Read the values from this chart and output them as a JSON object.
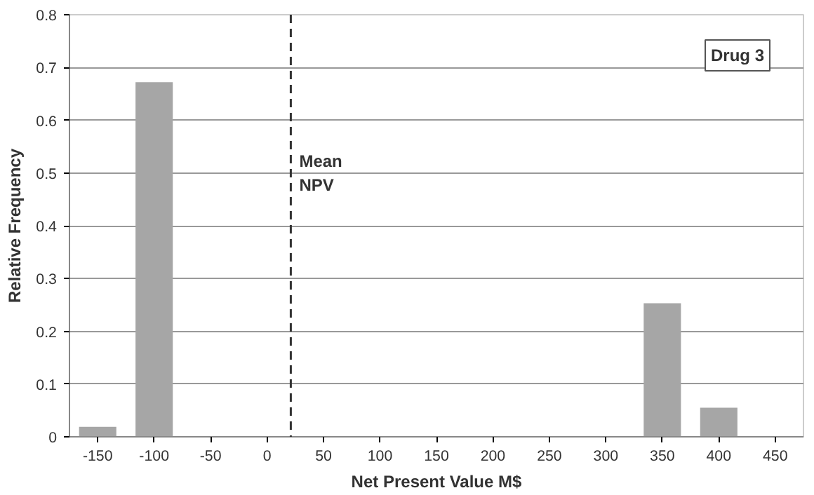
{
  "chart_data": {
    "type": "bar",
    "xlabel": "Net Present Value M$",
    "ylabel": "Relative Frequency",
    "x": [
      -150,
      -100,
      350,
      400
    ],
    "values": [
      0.019,
      0.672,
      0.253,
      0.055
    ],
    "color": "#a6a6a6",
    "xlim": [
      -175,
      475
    ],
    "xticks": [
      -150,
      -100,
      -50,
      0,
      50,
      100,
      150,
      200,
      250,
      300,
      350,
      400,
      450
    ],
    "ylim": [
      0,
      0.8
    ],
    "yticks": [
      0,
      0.1,
      0.2,
      0.3,
      0.4,
      0.5,
      0.6,
      0.7,
      0.8
    ],
    "grid": "y",
    "ref_lines": [
      {
        "axis": "x",
        "value": 21,
        "label": "Mean\nNPV",
        "line_style": "dashed",
        "color": "#333333"
      }
    ],
    "annotations": [
      "Drug 3"
    ]
  }
}
